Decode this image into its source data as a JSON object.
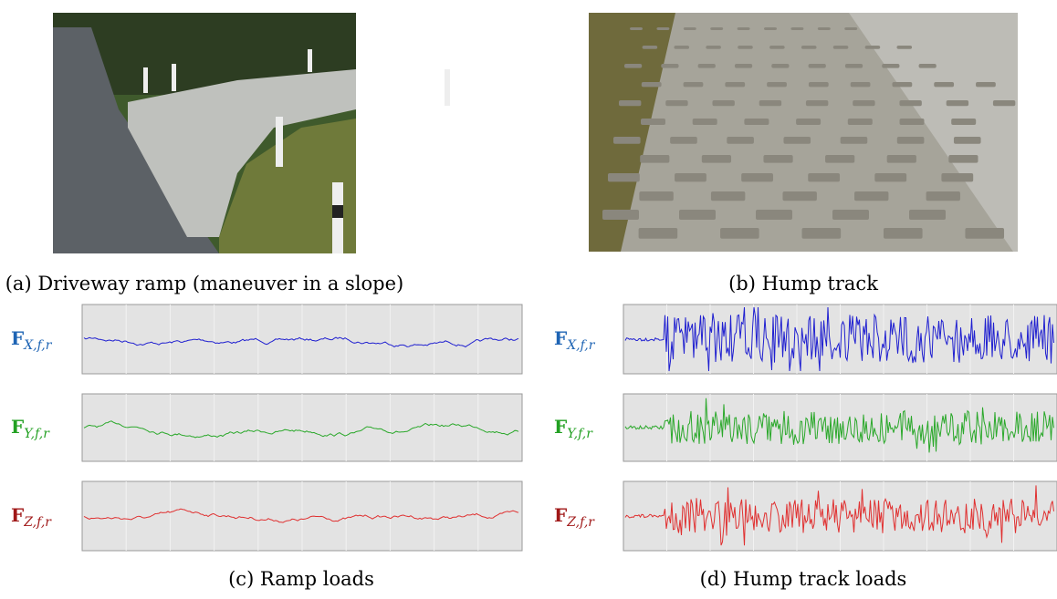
{
  "panels": [
    {
      "caption": "(a) Driveway ramp (maneuver in a slope)"
    },
    {
      "caption": "(b) Hump track"
    },
    {
      "caption": "(c) Ramp loads",
      "signals": [
        {
          "symbol": "F",
          "subscript": "X,f,r"
        },
        {
          "symbol": "F",
          "subscript": "Y,f,r"
        },
        {
          "symbol": "F",
          "subscript": "Z,f,r"
        }
      ]
    },
    {
      "caption": "(d) Hump track loads",
      "signals": [
        {
          "symbol": "F",
          "subscript": "X,f,r"
        },
        {
          "symbol": "F",
          "subscript": "Y,f,r"
        },
        {
          "symbol": "F",
          "subscript": "Z,f,r"
        }
      ]
    }
  ]
}
